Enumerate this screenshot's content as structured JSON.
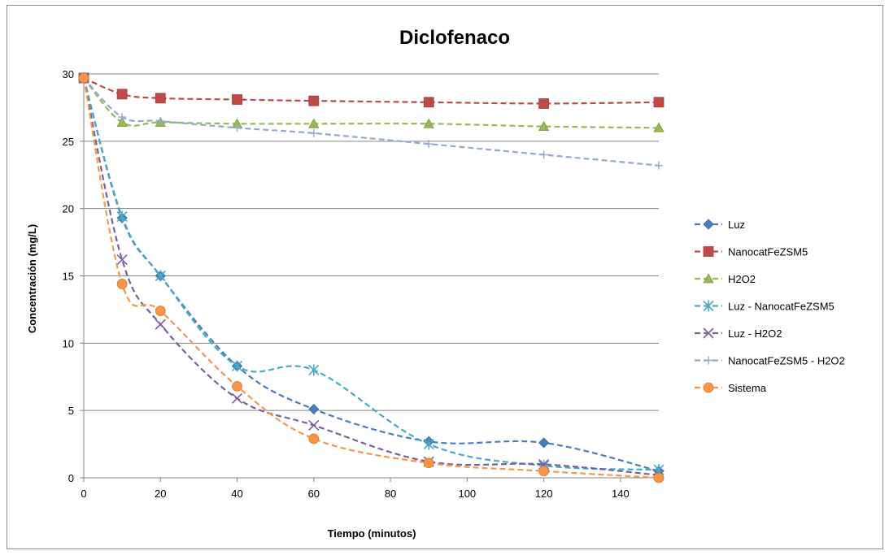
{
  "chart_data": {
    "type": "line",
    "title": "Diclofenaco",
    "xlabel": "Tiempo (minutos)",
    "ylabel": "Concentración (mg/L)",
    "xlim": [
      0,
      150
    ],
    "ylim": [
      0,
      30
    ],
    "x_ticks": [
      "0",
      "20",
      "40",
      "60",
      "80",
      "100",
      "120",
      "140"
    ],
    "y_ticks": [
      "0",
      "5",
      "10",
      "15",
      "20",
      "25",
      "30"
    ],
    "grid": "horizontal",
    "legend_position": "right",
    "series": [
      {
        "name": "Luz",
        "color": "#4a7ebb",
        "marker": "diamond",
        "x": [
          0,
          10,
          20,
          40,
          60,
          90,
          120,
          150
        ],
        "y": [
          29.7,
          19.3,
          15.0,
          8.3,
          5.1,
          2.7,
          2.6,
          0.5
        ]
      },
      {
        "name": "NanocatFeZSM5",
        "color": "#be4b48",
        "marker": "square",
        "x": [
          0,
          10,
          20,
          40,
          60,
          90,
          120,
          150
        ],
        "y": [
          29.7,
          28.5,
          28.2,
          28.1,
          28.0,
          27.9,
          27.8,
          27.9
        ]
      },
      {
        "name": "H2O2",
        "color": "#98b954",
        "marker": "triangle",
        "x": [
          0,
          10,
          20,
          40,
          60,
          90,
          120,
          150
        ],
        "y": [
          29.7,
          26.4,
          26.4,
          26.3,
          26.3,
          26.3,
          26.1,
          26.0
        ]
      },
      {
        "name": "Luz - NanocatFeZSM5",
        "color": "#46aac5",
        "marker": "star",
        "x": [
          0,
          10,
          20,
          40,
          60,
          90,
          120,
          150
        ],
        "y": [
          29.7,
          19.4,
          15.0,
          8.3,
          8.0,
          2.5,
          0.9,
          0.6
        ]
      },
      {
        "name": "Luz - H2O2",
        "color": "#7d5fa0",
        "marker": "x",
        "x": [
          0,
          10,
          20,
          40,
          60,
          90,
          120,
          150
        ],
        "y": [
          29.7,
          16.2,
          11.4,
          5.9,
          3.9,
          1.2,
          1.0,
          0.2
        ]
      },
      {
        "name": "NanocatFeZSM5  - H2O2",
        "color": "#93a9cf",
        "marker": "plus",
        "x": [
          0,
          10,
          20,
          40,
          60,
          90,
          120,
          150
        ],
        "y": [
          29.7,
          26.8,
          26.5,
          26.0,
          25.6,
          24.8,
          24.0,
          23.2
        ]
      },
      {
        "name": "Sistema",
        "color": "#f79646",
        "marker": "circle",
        "x": [
          0,
          10,
          20,
          40,
          60,
          90,
          120,
          150
        ],
        "y": [
          29.7,
          14.4,
          12.4,
          6.8,
          2.9,
          1.1,
          0.5,
          0.0
        ]
      }
    ]
  }
}
